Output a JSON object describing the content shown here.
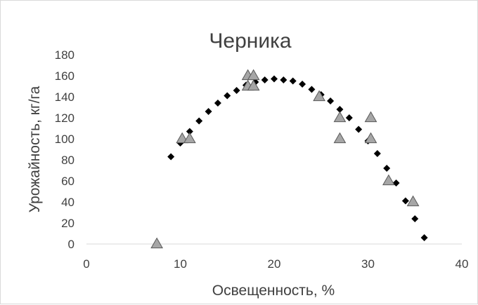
{
  "chart_data": {
    "type": "scatter",
    "title": "Черника",
    "xlabel": "Освещенность, %",
    "ylabel": "Урожайность, кг/га",
    "xlim": [
      0,
      40
    ],
    "ylim": [
      0,
      180
    ],
    "x_ticks": [
      "0",
      "10",
      "20",
      "30",
      "40"
    ],
    "y_ticks": [
      "0",
      "20",
      "40",
      "60",
      "80",
      "100",
      "120",
      "140",
      "160",
      "180"
    ],
    "grid": false,
    "legend": "none",
    "series": [
      {
        "marker": "diamond",
        "color": "#000000",
        "points": [
          {
            "x": 9,
            "y": 83
          },
          {
            "x": 10,
            "y": 96
          },
          {
            "x": 11,
            "y": 107
          },
          {
            "x": 12,
            "y": 117
          },
          {
            "x": 13,
            "y": 126
          },
          {
            "x": 14,
            "y": 134
          },
          {
            "x": 15,
            "y": 141
          },
          {
            "x": 16,
            "y": 146
          },
          {
            "x": 17,
            "y": 151
          },
          {
            "x": 18,
            "y": 154
          },
          {
            "x": 19,
            "y": 156
          },
          {
            "x": 20,
            "y": 157
          },
          {
            "x": 21,
            "y": 156
          },
          {
            "x": 22,
            "y": 155
          },
          {
            "x": 23,
            "y": 152
          },
          {
            "x": 24,
            "y": 147
          },
          {
            "x": 25,
            "y": 142
          },
          {
            "x": 26,
            "y": 136
          },
          {
            "x": 27,
            "y": 128
          },
          {
            "x": 28,
            "y": 120
          },
          {
            "x": 29,
            "y": 109
          },
          {
            "x": 30,
            "y": 98
          },
          {
            "x": 31,
            "y": 86
          },
          {
            "x": 32,
            "y": 72
          },
          {
            "x": 33,
            "y": 58
          },
          {
            "x": 34,
            "y": 41
          },
          {
            "x": 35,
            "y": 24
          },
          {
            "x": 36,
            "y": 6
          }
        ]
      },
      {
        "marker": "triangle",
        "color": "#a6a6a6",
        "points": [
          {
            "x": 7.5,
            "y": 0
          },
          {
            "x": 10.2,
            "y": 100
          },
          {
            "x": 11,
            "y": 100
          },
          {
            "x": 17.2,
            "y": 160
          },
          {
            "x": 17.2,
            "y": 150
          },
          {
            "x": 17.8,
            "y": 160
          },
          {
            "x": 17.8,
            "y": 150
          },
          {
            "x": 24.8,
            "y": 140
          },
          {
            "x": 27,
            "y": 120
          },
          {
            "x": 27,
            "y": 100
          },
          {
            "x": 30.3,
            "y": 120
          },
          {
            "x": 30.3,
            "y": 100
          },
          {
            "x": 32.2,
            "y": 60
          },
          {
            "x": 34.8,
            "y": 40
          }
        ]
      }
    ]
  }
}
